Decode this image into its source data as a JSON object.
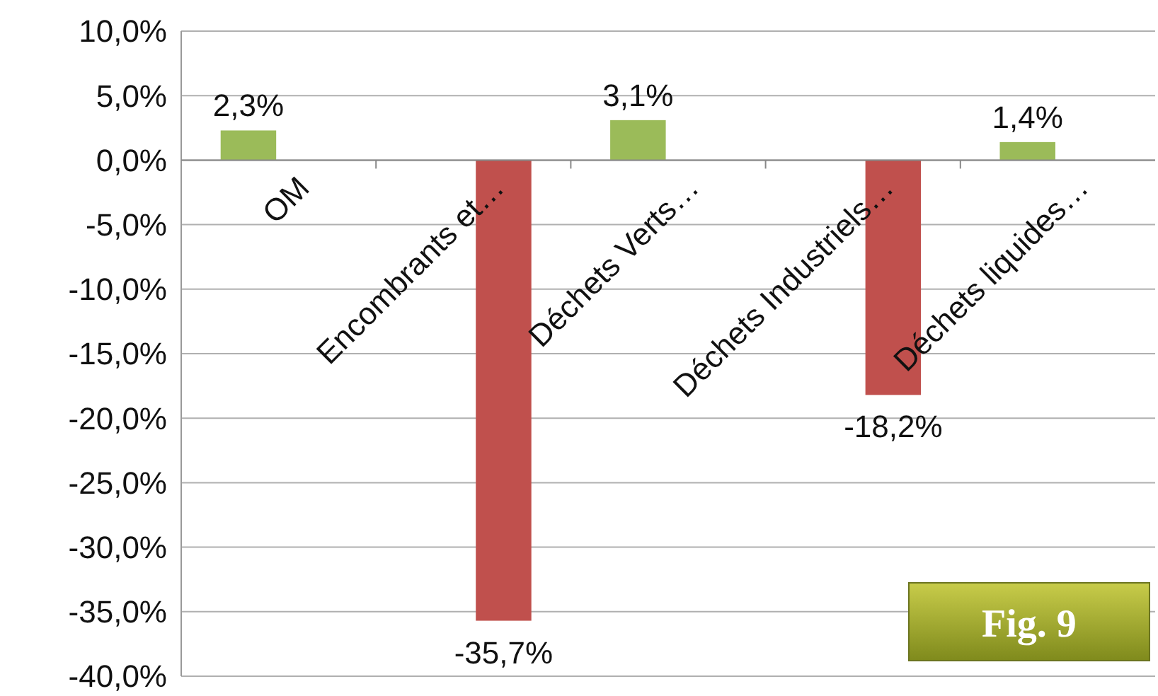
{
  "chart_data": {
    "type": "bar",
    "categories": [
      "OM",
      "Encombrants et…",
      "Déchets Verts…",
      "Déchets Industriels…",
      "Déchets liquides…"
    ],
    "series": [
      {
        "color": "#9bbb59",
        "values": [
          2.3,
          null,
          3.1,
          null,
          1.4
        ],
        "value_labels": [
          "2,3%",
          null,
          "3,1%",
          null,
          "1,4%"
        ]
      },
      {
        "color": "#c0504d",
        "values": [
          null,
          -35.7,
          null,
          -18.2,
          null
        ],
        "value_labels": [
          null,
          "-35,7%",
          null,
          "-18,2%",
          null
        ]
      }
    ],
    "ylim": [
      -40,
      10
    ],
    "yticks": [
      {
        "value": -40,
        "label": "-40,0%"
      },
      {
        "value": -35,
        "label": "-35,0%"
      },
      {
        "value": -30,
        "label": "-30,0%"
      },
      {
        "value": -25,
        "label": "-25,0%"
      },
      {
        "value": -20,
        "label": "-20,0%"
      },
      {
        "value": -15,
        "label": "-15,0%"
      },
      {
        "value": -10,
        "label": "-10,0%"
      },
      {
        "value": -5,
        "label": "-5,0%"
      },
      {
        "value": 0,
        "label": "0,0%"
      },
      {
        "value": 5,
        "label": "5,0%"
      },
      {
        "value": 10,
        "label": "10,0%"
      }
    ],
    "grid": "y",
    "annotations": [
      "Fig. 9"
    ]
  }
}
